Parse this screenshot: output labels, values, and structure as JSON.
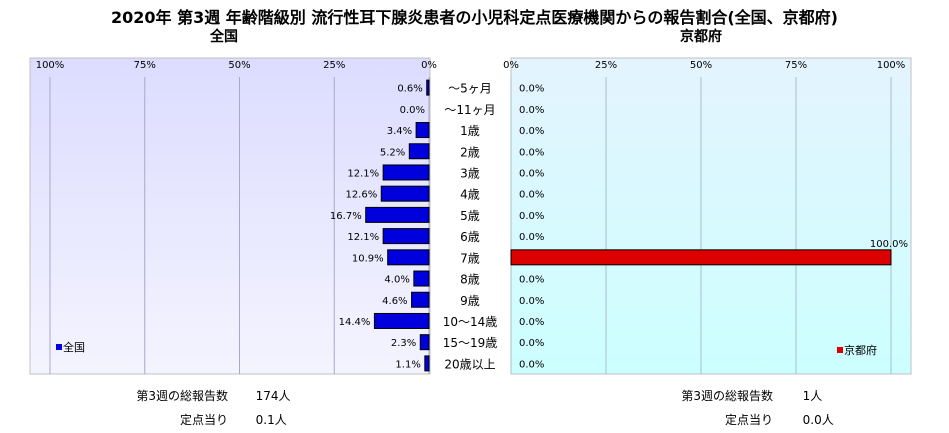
{
  "title": "2020年 第3週 年齢階級別 流行性耳下腺炎患者の小児科定点医療機関からの報告割合(全国、京都府)",
  "colors": {
    "plot_bg_top": "#dcdcff",
    "plot_bg_bottom": "#f4f4ff",
    "right_bg_top": "#e4f4ff",
    "right_bg_bottom": "#ccffff",
    "national_bar": "#0000dd",
    "kyoto_bar": "#dd0000"
  },
  "chart_data": [
    {
      "type": "bar",
      "orientation": "horizontal",
      "title": "全国",
      "categories": [
        "～5ヶ月",
        "～11ヶ月",
        "1歳",
        "2歳",
        "3歳",
        "4歳",
        "5歳",
        "6歳",
        "7歳",
        "8歳",
        "9歳",
        "10～14歳",
        "15～19歳",
        "20歳以上"
      ],
      "series": [
        {
          "name": "全国",
          "values": [
            0.6,
            0.0,
            3.4,
            5.2,
            12.1,
            12.6,
            16.7,
            12.1,
            10.9,
            4.0,
            4.6,
            14.4,
            2.3,
            1.1
          ]
        }
      ],
      "value_labels": [
        "0.6%",
        "0.0%",
        "3.4%",
        "5.2%",
        "12.1%",
        "12.6%",
        "16.7%",
        "12.1%",
        "10.9%",
        "4.0%",
        "4.6%",
        "14.4%",
        "2.3%",
        "1.1%"
      ],
      "xlim": [
        100,
        0
      ],
      "xticks": [
        "100%",
        "75%",
        "50%",
        "25%",
        "0%"
      ],
      "grid": true,
      "legend": "bottom-left"
    },
    {
      "type": "bar",
      "orientation": "horizontal",
      "title": "京都府",
      "categories": [
        "～5ヶ月",
        "～11ヶ月",
        "1歳",
        "2歳",
        "3歳",
        "4歳",
        "5歳",
        "6歳",
        "7歳",
        "8歳",
        "9歳",
        "10～14歳",
        "15～19歳",
        "20歳以上"
      ],
      "series": [
        {
          "name": "京都府",
          "values": [
            0.0,
            0.0,
            0.0,
            0.0,
            0.0,
            0.0,
            0.0,
            0.0,
            100.0,
            0.0,
            0.0,
            0.0,
            0.0,
            0.0
          ]
        }
      ],
      "value_labels": [
        "0.0%",
        "0.0%",
        "0.0%",
        "0.0%",
        "0.0%",
        "0.0%",
        "0.0%",
        "0.0%",
        "100.0%",
        "0.0%",
        "0.0%",
        "0.0%",
        "0.0%",
        "0.0%"
      ],
      "xlim": [
        0,
        100
      ],
      "xticks": [
        "0%",
        "25%",
        "50%",
        "75%",
        "100%"
      ],
      "grid": true,
      "legend": "bottom-right"
    }
  ],
  "footer": {
    "national": {
      "total_label": "第3週の総報告数",
      "total_value": "174人",
      "per_label": "定点当り",
      "per_value": "0.1人"
    },
    "kyoto": {
      "total_label": "第3週の総報告数",
      "total_value": "1人",
      "per_label": "定点当り",
      "per_value": "0.0人"
    }
  }
}
